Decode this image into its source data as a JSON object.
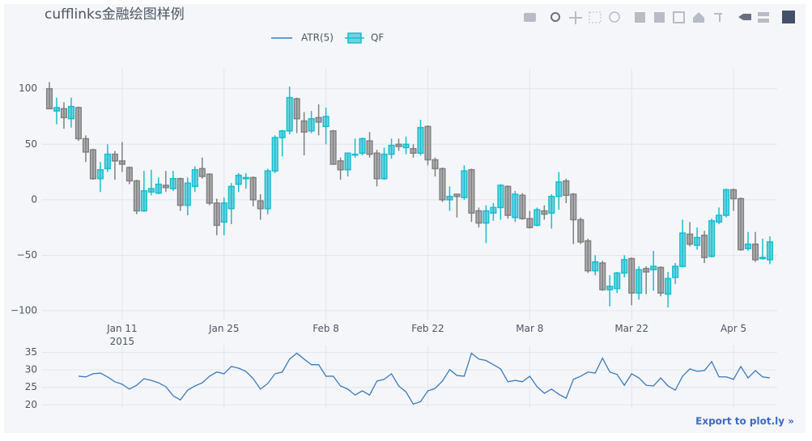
{
  "chart_data": {
    "type": "candlestick",
    "title": "cufflinks金融绘图样例",
    "legend": "top",
    "grid": true,
    "link": "Export to plot.ly »",
    "x": [
      "2015-01-01",
      "2015-01-02",
      "2015-01-03",
      "2015-01-04",
      "2015-01-05",
      "2015-01-06",
      "2015-01-07",
      "2015-01-08",
      "2015-01-09",
      "2015-01-10",
      "2015-01-11",
      "2015-01-12",
      "2015-01-13",
      "2015-01-14",
      "2015-01-15",
      "2015-01-16",
      "2015-01-17",
      "2015-01-18",
      "2015-01-19",
      "2015-01-20",
      "2015-01-21",
      "2015-01-22",
      "2015-01-23",
      "2015-01-24",
      "2015-01-25",
      "2015-01-26",
      "2015-01-27",
      "2015-01-28",
      "2015-01-29",
      "2015-01-30",
      "2015-01-31",
      "2015-02-01",
      "2015-02-02",
      "2015-02-03",
      "2015-02-04",
      "2015-02-05",
      "2015-02-06",
      "2015-02-07",
      "2015-02-08",
      "2015-02-09",
      "2015-02-10",
      "2015-02-11",
      "2015-02-12",
      "2015-02-13",
      "2015-02-14",
      "2015-02-15",
      "2015-02-16",
      "2015-02-17",
      "2015-02-18",
      "2015-02-19",
      "2015-02-20",
      "2015-02-21",
      "2015-02-22",
      "2015-02-23",
      "2015-02-24",
      "2015-02-25",
      "2015-02-26",
      "2015-02-27",
      "2015-02-28",
      "2015-03-01",
      "2015-03-02",
      "2015-03-03",
      "2015-03-04",
      "2015-03-05",
      "2015-03-06",
      "2015-03-07",
      "2015-03-08",
      "2015-03-09",
      "2015-03-10",
      "2015-03-11",
      "2015-03-12",
      "2015-03-13",
      "2015-03-14",
      "2015-03-15",
      "2015-03-16",
      "2015-03-17",
      "2015-03-18",
      "2015-03-19",
      "2015-03-20",
      "2015-03-21",
      "2015-03-22",
      "2015-03-23",
      "2015-03-24",
      "2015-03-25",
      "2015-03-26",
      "2015-03-27",
      "2015-03-28",
      "2015-03-29",
      "2015-03-30",
      "2015-03-31",
      "2015-04-01",
      "2015-04-02",
      "2015-04-03",
      "2015-04-04",
      "2015-04-05",
      "2015-04-06",
      "2015-04-07",
      "2015-04-08",
      "2015-04-09",
      "2015-04-10"
    ],
    "xlim": [
      "2014-12-31",
      "2015-04-11"
    ],
    "xticks": [
      {
        "value": "2015-01-11",
        "label": "Jan 11\n2015"
      },
      {
        "value": "2015-01-25",
        "label": "Jan 25"
      },
      {
        "value": "2015-02-08",
        "label": "Feb 8"
      },
      {
        "value": "2015-02-22",
        "label": "Feb 22"
      },
      {
        "value": "2015-03-08",
        "label": "Mar 8"
      },
      {
        "value": "2015-03-22",
        "label": "Mar 22"
      },
      {
        "value": "2015-04-05",
        "label": "Apr 5"
      }
    ],
    "ylim": [
      -108,
      118
    ],
    "yticks": [
      {
        "value": -100,
        "label": "−100"
      },
      {
        "value": -50,
        "label": "−50"
      },
      0,
      50,
      100
    ],
    "series": [
      {
        "name": "QF",
        "increasing_color": "#17BECF",
        "decreasing_color": "#808080",
        "open": [
          100,
          80,
          82,
          73,
          83,
          55,
          45,
          19,
          28,
          41,
          35,
          29,
          17,
          -10,
          7,
          6,
          13,
          10,
          19,
          -5,
          12,
          28,
          23,
          -3,
          -20,
          -8,
          14,
          19,
          20,
          -1,
          -8,
          26,
          56,
          62,
          91,
          71,
          62,
          74,
          66,
          62,
          35,
          27,
          41,
          42,
          53,
          42,
          19,
          41,
          50,
          47,
          46,
          42,
          66,
          36,
          28,
          0,
          5,
          2,
          27,
          -10,
          -21,
          -12,
          -7,
          12,
          -16,
          4,
          -17,
          -23,
          -10,
          -12,
          3,
          17,
          5,
          -18,
          -37,
          -64,
          -57,
          -81,
          -80,
          -66,
          -53,
          -84,
          -62,
          -63,
          -61,
          -85,
          -70,
          -60,
          -31,
          -41,
          -32,
          -51,
          -20,
          -14,
          9,
          1,
          -44,
          -40,
          -53,
          -54
        ],
        "high": [
          106,
          92,
          88,
          92,
          84,
          58,
          46,
          34,
          50,
          44,
          52,
          30,
          18,
          26,
          27,
          20,
          26,
          26,
          20,
          20,
          30,
          38,
          24,
          1,
          2,
          15,
          24,
          24,
          21,
          5,
          28,
          58,
          63,
          102,
          92,
          79,
          80,
          86,
          83,
          63,
          38,
          42,
          55,
          56,
          61,
          45,
          47,
          55,
          55,
          57,
          50,
          72,
          67,
          38,
          29,
          12,
          5,
          31,
          28,
          -7,
          -5,
          -3,
          14,
          13,
          8,
          6,
          -10,
          -7,
          -5,
          5,
          25,
          19,
          6,
          -16,
          -35,
          -50,
          -55,
          -68,
          -65,
          -50,
          -52,
          -60,
          -60,
          -46,
          -60,
          -65,
          -57,
          -18,
          -20,
          -25,
          -28,
          -17,
          -7,
          10,
          10,
          2,
          -29,
          -29,
          -35,
          -33
        ],
        "low": [
          82,
          68,
          64,
          65,
          53,
          34,
          18,
          7,
          25,
          18,
          25,
          14,
          -13,
          -11,
          4,
          5,
          7,
          8,
          -10,
          -14,
          7,
          19,
          -5,
          -32,
          -32,
          -22,
          7,
          10,
          -6,
          -18,
          -13,
          24,
          39,
          59,
          60,
          40,
          60,
          58,
          50,
          32,
          18,
          21,
          38,
          40,
          38,
          12,
          18,
          37,
          44,
          41,
          38,
          40,
          31,
          21,
          -2,
          -10,
          -16,
          0,
          -20,
          -25,
          -39,
          -19,
          -18,
          -17,
          -20,
          -18,
          -26,
          -24,
          -18,
          -26,
          -9,
          -3,
          -40,
          -40,
          -66,
          -68,
          -82,
          -96,
          -84,
          -70,
          -95,
          -90,
          -85,
          -82,
          -87,
          -97,
          -76,
          -61,
          -42,
          -45,
          -57,
          -52,
          -22,
          -16,
          -10,
          -46,
          -46,
          -56,
          -54,
          -58
        ],
        "close": [
          82,
          83,
          74,
          84,
          55,
          43,
          19,
          27,
          41,
          35,
          32,
          17,
          -10,
          8,
          10,
          14,
          11,
          19,
          -5,
          15,
          27,
          21,
          -3,
          -23,
          -3,
          12,
          22,
          20,
          0,
          -8,
          26,
          56,
          62,
          92,
          73,
          61,
          73,
          70,
          75,
          32,
          27,
          42,
          41,
          55,
          41,
          19,
          41,
          49,
          48,
          50,
          42,
          65,
          36,
          28,
          0,
          3,
          3,
          26,
          -12,
          -21,
          -10,
          -7,
          13,
          -14,
          5,
          -17,
          -25,
          -9,
          -13,
          3,
          16,
          4,
          -18,
          -38,
          -64,
          -56,
          -81,
          -78,
          -66,
          -54,
          -84,
          -63,
          -65,
          -60,
          -84,
          -71,
          -60,
          -30,
          -40,
          -34,
          -52,
          -19,
          -14,
          9,
          1,
          -45,
          -40,
          -54,
          -52,
          -38
        ]
      }
    ],
    "subplot": {
      "type": "line",
      "ylim": [
        18.9,
        37
      ],
      "yticks": [
        20,
        25,
        30,
        35
      ],
      "series": [
        {
          "name": "ATR(5)",
          "color": "#3a7bbf",
          "values": [
            null,
            null,
            null,
            null,
            28.2,
            28,
            28.9,
            29.1,
            28,
            26.6,
            25.9,
            24.5,
            25.6,
            27.5,
            27,
            26.3,
            25.2,
            22.6,
            21.4,
            24.2,
            25.4,
            26.3,
            28.2,
            29.4,
            28.9,
            31,
            30.5,
            29.6,
            27.5,
            24.5,
            26.1,
            28.9,
            29.4,
            33.1,
            34.8,
            33.1,
            31.5,
            31.5,
            28.2,
            28.2,
            25.4,
            24.5,
            22.8,
            24,
            22.8,
            26.8,
            27.3,
            28.9,
            25.4,
            23.7,
            20.2,
            20.9,
            24,
            24.7,
            26.8,
            30.1,
            28.4,
            28.2,
            34.8,
            33.1,
            32.7,
            31.5,
            30.3,
            26.6,
            27,
            26.6,
            28.2,
            25.2,
            23.3,
            24.5,
            23,
            21.9,
            27.3,
            28.2,
            29.4,
            29.1,
            33.4,
            29.4,
            28.7,
            25.6,
            28.9,
            27.7,
            25.6,
            25.4,
            27.7,
            25.4,
            24.2,
            28.2,
            30.3,
            29.6,
            29.8,
            32.4,
            28,
            28,
            27.3,
            31,
            27.7,
            29.8,
            28,
            27.7
          ]
        }
      ]
    }
  }
}
